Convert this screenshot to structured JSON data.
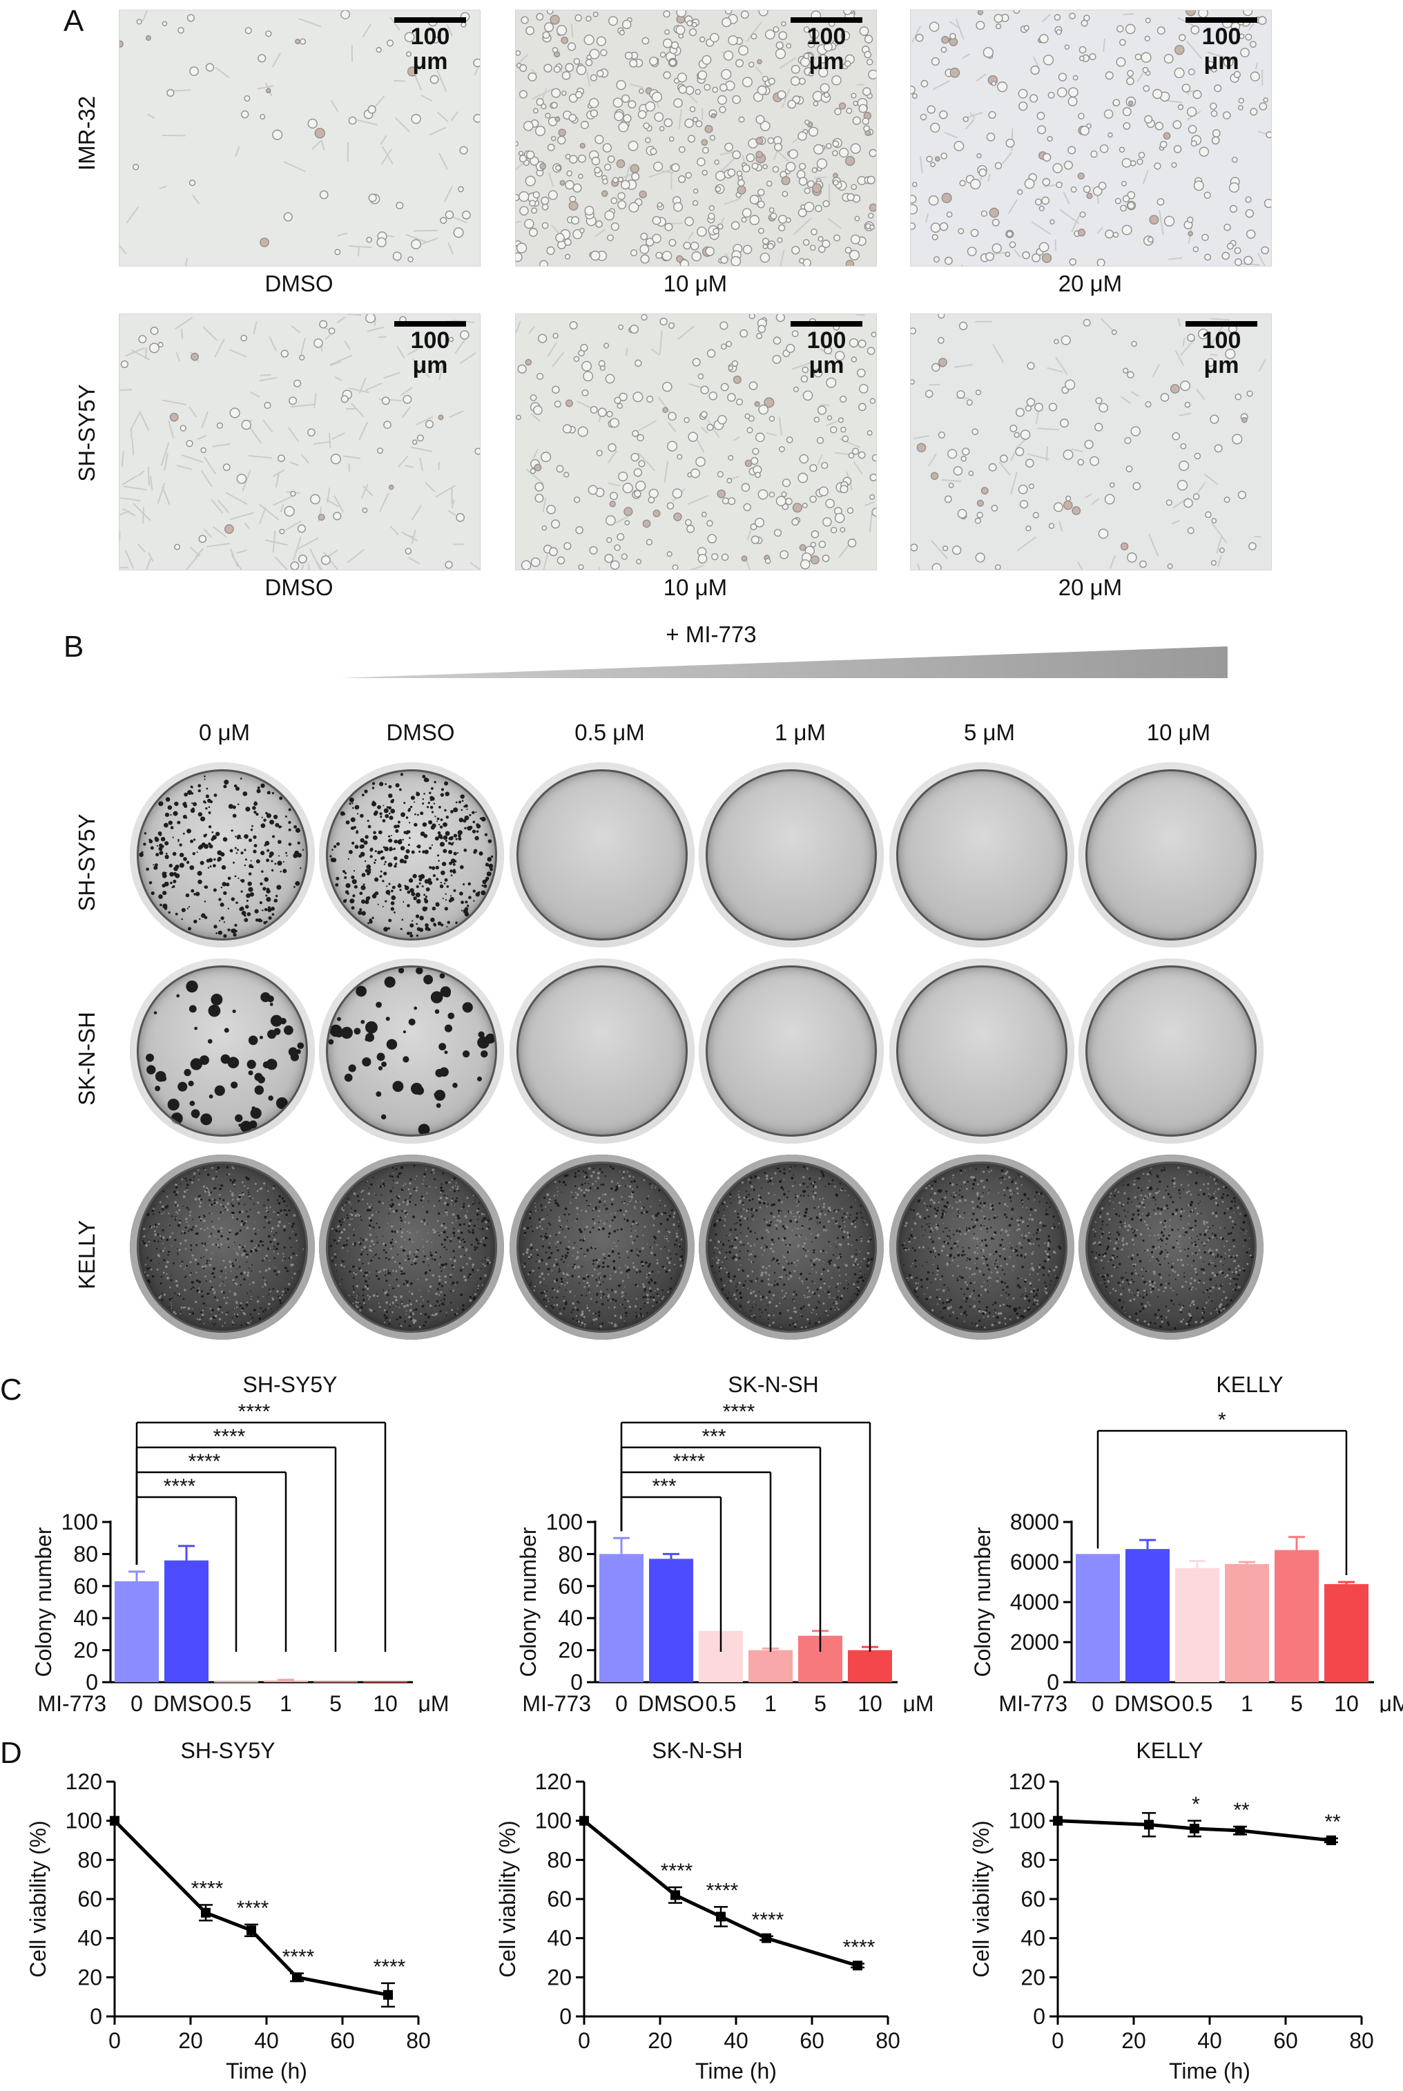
{
  "figure": {
    "panel_labels": {
      "a": "A",
      "b": "B",
      "c": "C",
      "d": "D"
    },
    "panel_a": {
      "rows": [
        "IMR-32",
        "SH-SY5Y"
      ],
      "conditions": [
        "DMSO",
        "10 μM",
        "20 μM"
      ],
      "scale_bar": "100 μm"
    },
    "panel_b": {
      "treatment": "+ MI-773",
      "concentrations": [
        "0 μM",
        "DMSO",
        "0.5 μM",
        "1 μM",
        "5 μM",
        "10 μM"
      ],
      "rows": [
        "SH-SY5Y",
        "SK-N-SH",
        "KELLY"
      ]
    },
    "colors": {
      "bar_0": "#8b8cff",
      "bar_dmso": "#4d4dff",
      "bar_0_5": "#fbd9dc",
      "bar_1": "#f8a8a8",
      "bar_5": "#f7797d",
      "bar_10": "#f4474b",
      "line": "#000000"
    }
  },
  "chart_data": [
    {
      "panel": "C",
      "type": "bar",
      "title": "SH-SY5Y",
      "ylabel": "Colony number",
      "xprefix": "MI-773",
      "xunit": "μM",
      "categories": [
        "0",
        "DMSO",
        "0.5",
        "1",
        "5",
        "10"
      ],
      "values": [
        63,
        76,
        0.5,
        1,
        0.5,
        0.5
      ],
      "errors": [
        6,
        9,
        0,
        0.5,
        0,
        0
      ],
      "ylim": [
        0,
        100
      ],
      "yticks": [
        0,
        20,
        40,
        60,
        80,
        100
      ],
      "brackets": [
        {
          "to": "0.5",
          "label": "****"
        },
        {
          "to": "1",
          "label": "****"
        },
        {
          "to": "5",
          "label": "****"
        },
        {
          "to": "10",
          "label": "****"
        }
      ]
    },
    {
      "panel": "C",
      "type": "bar",
      "title": "SK-N-SH",
      "ylabel": "Colony number",
      "xprefix": "MI-773",
      "xunit": "μM",
      "categories": [
        "0",
        "DMSO",
        "0.5",
        "1",
        "5",
        "10"
      ],
      "values": [
        80,
        77,
        32,
        20,
        29,
        20
      ],
      "errors": [
        10,
        3,
        0,
        1,
        3,
        2
      ],
      "ylim": [
        0,
        100
      ],
      "yticks": [
        0,
        20,
        40,
        60,
        80,
        100
      ],
      "brackets": [
        {
          "to": "0.5",
          "label": "***"
        },
        {
          "to": "1",
          "label": "****"
        },
        {
          "to": "5",
          "label": "***"
        },
        {
          "to": "10",
          "label": "****"
        }
      ]
    },
    {
      "panel": "C",
      "type": "bar",
      "title": "KELLY",
      "ylabel": "Colony number",
      "xprefix": "MI-773",
      "xunit": "μM",
      "categories": [
        "0",
        "DMSO",
        "0.5",
        "1",
        "5",
        "10"
      ],
      "values": [
        6400,
        6650,
        5700,
        5900,
        6600,
        4900
      ],
      "errors": [
        0,
        450,
        350,
        100,
        650,
        100
      ],
      "ylim": [
        0,
        8000
      ],
      "yticks": [
        0,
        2000,
        4000,
        6000,
        8000
      ],
      "brackets": [
        {
          "to": "10",
          "label": "*"
        }
      ]
    },
    {
      "panel": "D",
      "type": "line",
      "title": "SH-SY5Y",
      "xlabel": "Time (h)",
      "ylabel": "Cell viability (%)",
      "x": [
        0,
        24,
        36,
        48,
        72
      ],
      "y": [
        100,
        53,
        44,
        20,
        11
      ],
      "errors": [
        0,
        4,
        3,
        2,
        6
      ],
      "labels": [
        "",
        "****",
        "****",
        "****",
        "****"
      ],
      "xlim": [
        0,
        80
      ],
      "xticks": [
        0,
        20,
        40,
        60,
        80
      ],
      "ylim": [
        0,
        120
      ],
      "yticks": [
        0,
        20,
        40,
        60,
        80,
        100,
        120
      ]
    },
    {
      "panel": "D",
      "type": "line",
      "title": "SK-N-SH",
      "xlabel": "Time (h)",
      "ylabel": "Cell viability (%)",
      "x": [
        0,
        24,
        36,
        48,
        72
      ],
      "y": [
        100,
        62,
        51,
        40,
        26
      ],
      "errors": [
        0,
        4,
        5,
        1,
        1
      ],
      "labels": [
        "",
        "****",
        "****",
        "****",
        "****"
      ],
      "xlim": [
        0,
        80
      ],
      "xticks": [
        0,
        20,
        40,
        60,
        80
      ],
      "ylim": [
        0,
        120
      ],
      "yticks": [
        0,
        20,
        40,
        60,
        80,
        100,
        120
      ]
    },
    {
      "panel": "D",
      "type": "line",
      "title": "KELLY",
      "xlabel": "Time (h)",
      "ylabel": "Cell viability (%)",
      "x": [
        0,
        24,
        36,
        48,
        72
      ],
      "y": [
        100,
        98,
        96,
        95,
        90
      ],
      "errors": [
        0,
        6,
        4,
        2,
        1
      ],
      "labels": [
        "",
        "",
        "*",
        "**",
        "**"
      ],
      "xlim": [
        0,
        80
      ],
      "xticks": [
        0,
        20,
        40,
        60,
        80
      ],
      "ylim": [
        0,
        120
      ],
      "yticks": [
        0,
        20,
        40,
        60,
        80,
        100,
        120
      ]
    }
  ]
}
